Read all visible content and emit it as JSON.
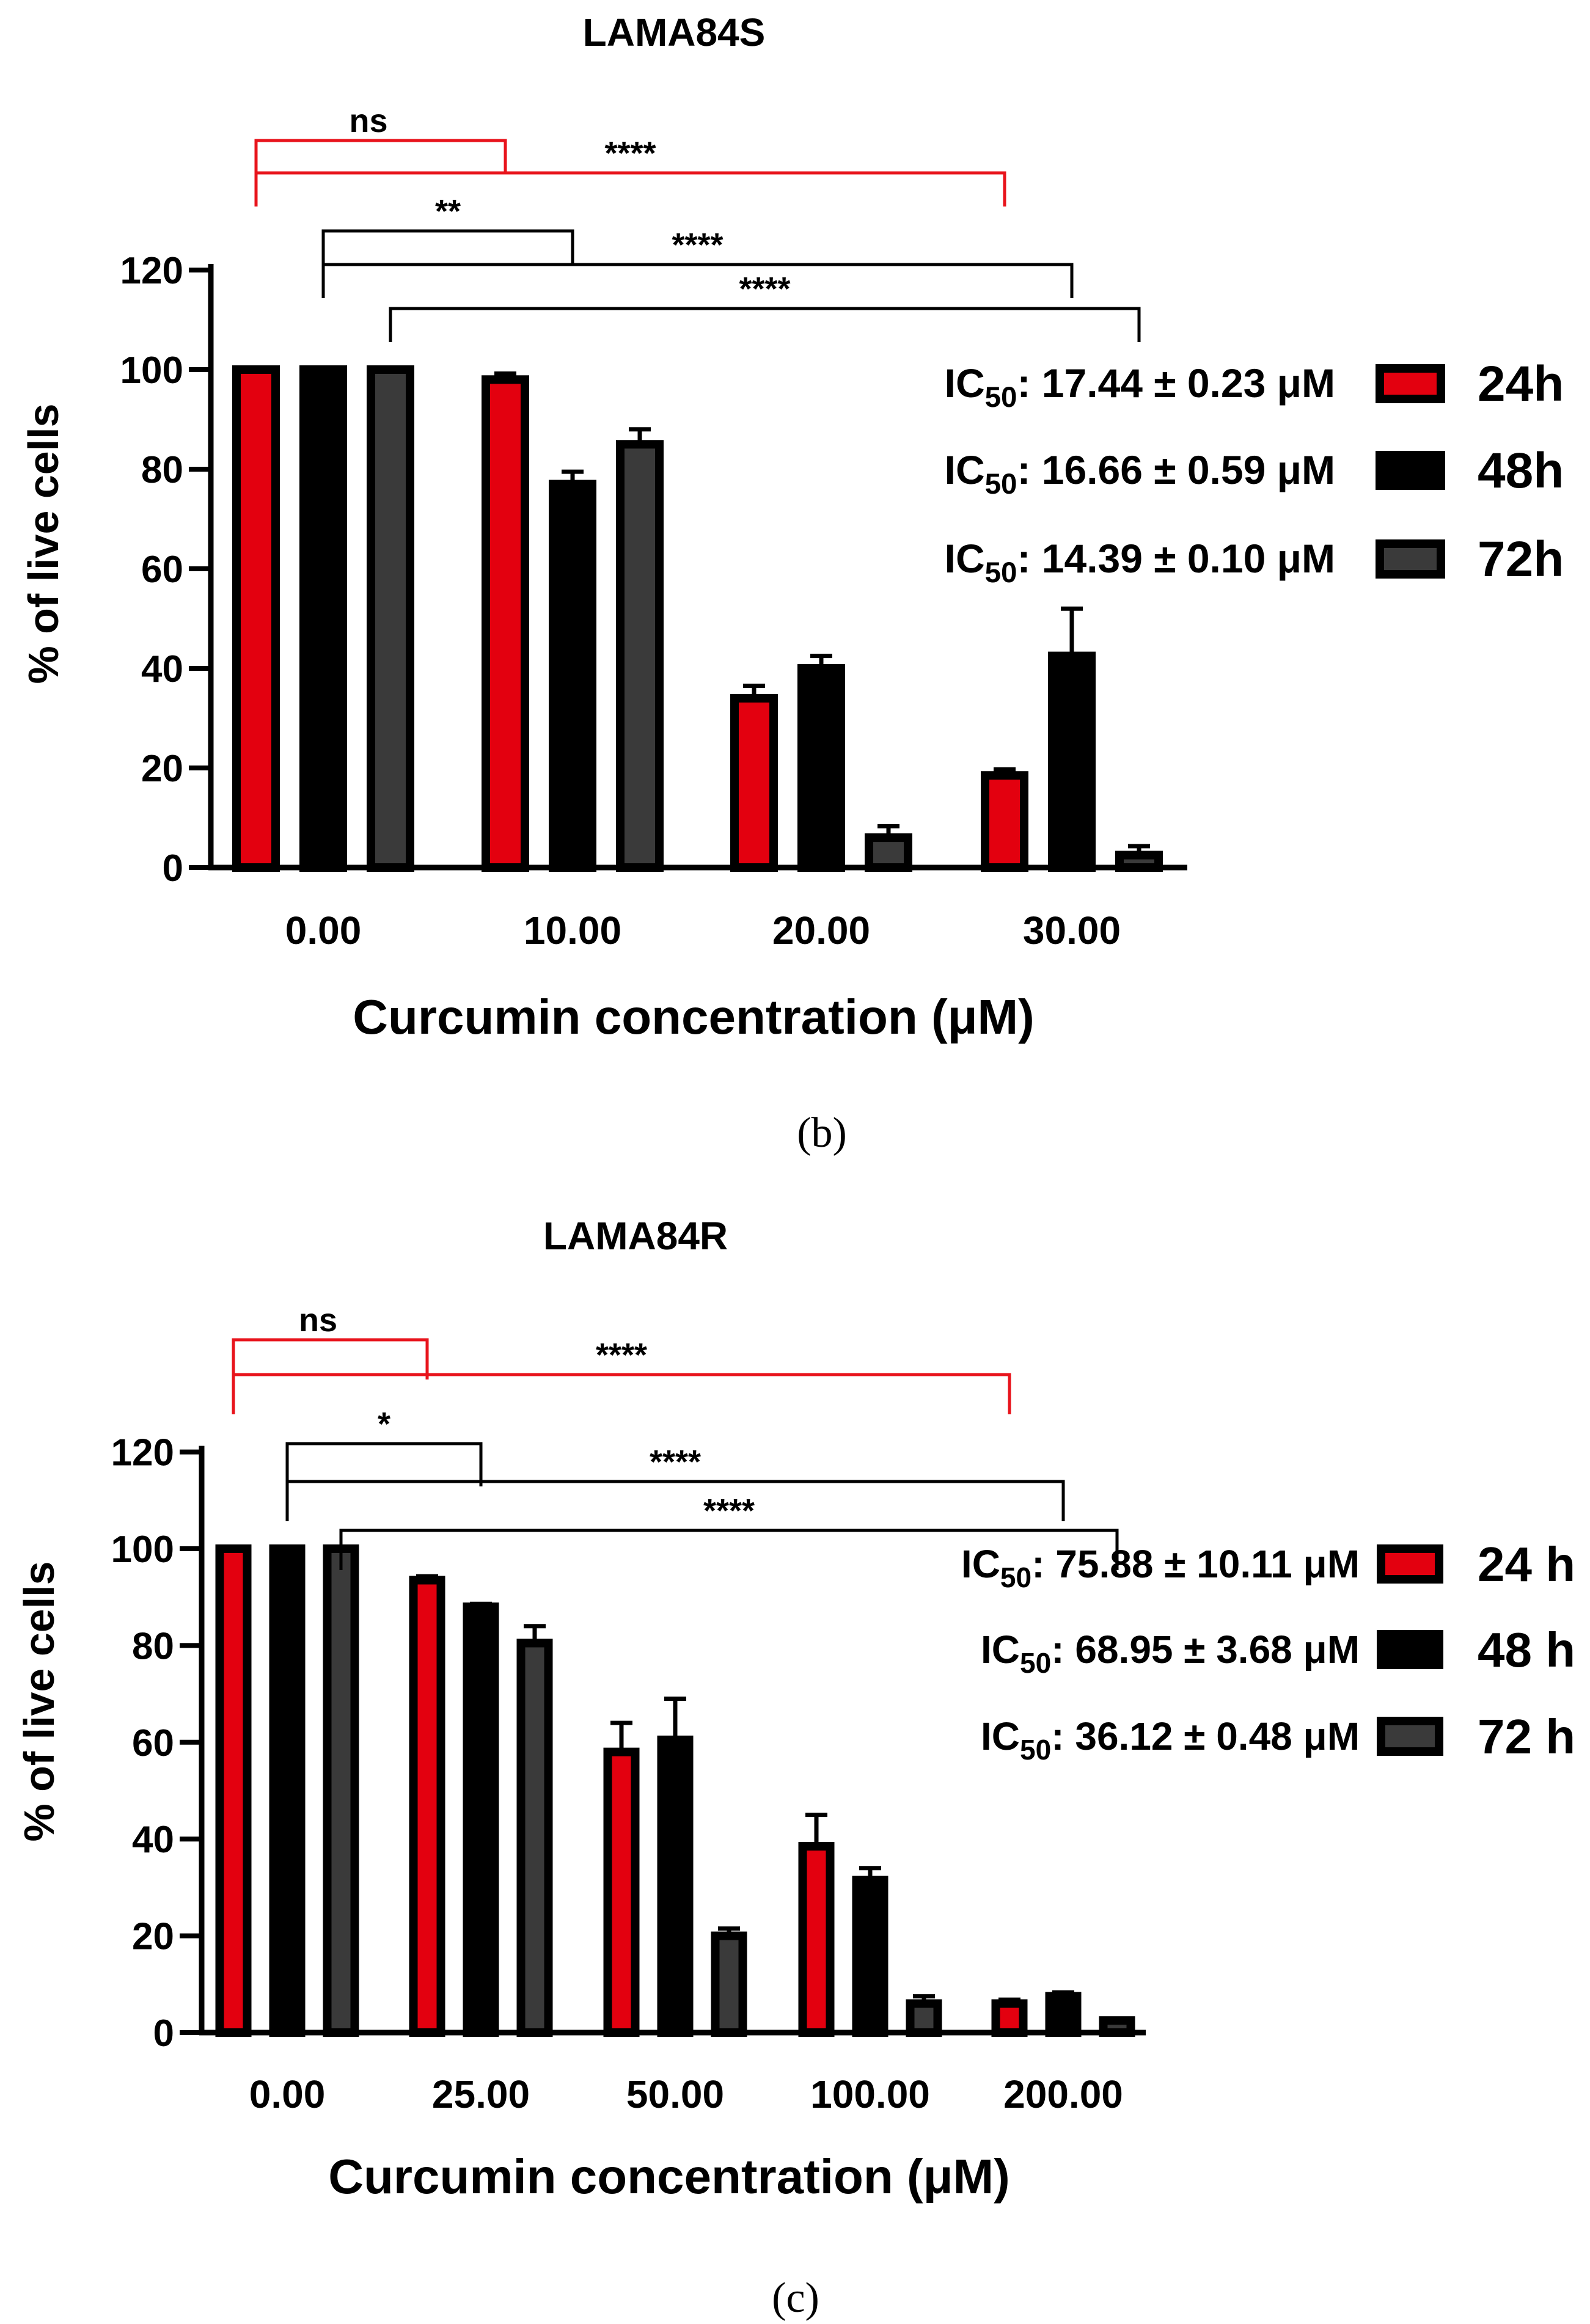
{
  "colors": {
    "h24": "#e3000f",
    "h48": "#000000",
    "h72": "#3a3a3a",
    "axis": "#000000",
    "sig_red": "#e8141c",
    "sig_black": "#000000"
  },
  "chart_data": [
    {
      "type": "bar",
      "title": "LAMA84S",
      "caption": "(b)",
      "xlabel": "Curcumin concentration (μM)",
      "ylabel": "% of live cells",
      "ylim": [
        0,
        120
      ],
      "yticks": [
        0,
        20,
        40,
        60,
        80,
        100,
        120
      ],
      "categories": [
        "0.00",
        "10.00",
        "20.00",
        "30.00"
      ],
      "series": [
        {
          "name": "24h",
          "color_key": "h24",
          "values": [
            100,
            98,
            34,
            18.5
          ],
          "errors": [
            0,
            1.2,
            2.5,
            1.2
          ]
        },
        {
          "name": "48h",
          "color_key": "h48",
          "values": [
            100,
            77,
            40,
            42.5
          ],
          "errors": [
            0,
            2.5,
            2.5,
            9.5
          ]
        },
        {
          "name": "72h",
          "color_key": "h72",
          "values": [
            100,
            85,
            6,
            2.5
          ],
          "errors": [
            0,
            3,
            2.3,
            1.8
          ]
        }
      ],
      "ic50": [
        {
          "prefix": "IC",
          "sub": "50",
          "rest": ": 17.44 ± 0.23 μM"
        },
        {
          "prefix": "IC",
          "sub": "50",
          "rest": ": 16.66 ± 0.59 μM"
        },
        {
          "prefix": "IC",
          "sub": "50",
          "rest": ": 14.39 ± 0.10 μM"
        }
      ],
      "significance": [
        {
          "label": "ns",
          "from_cat": 0,
          "from_series": 0,
          "to_cat": 1,
          "to_series": 0,
          "color_key": "sig_red"
        },
        {
          "label": "****",
          "from_cat": 0,
          "from_series": 0,
          "to_cat": 3,
          "to_series": 0,
          "color_key": "sig_red"
        },
        {
          "label": "**",
          "from_cat": 0,
          "from_series": 1,
          "to_cat": 1,
          "to_series": 1,
          "color_key": "sig_black"
        },
        {
          "label": "****",
          "from_cat": 0,
          "from_series": 1,
          "to_cat": 3,
          "to_series": 1,
          "color_key": "sig_black"
        },
        {
          "label": "****",
          "from_cat": 0,
          "from_series": 2,
          "to_cat": 3,
          "to_series": 2,
          "color_key": "sig_black"
        }
      ]
    },
    {
      "type": "bar",
      "title": "LAMA84R",
      "caption": "(c)",
      "xlabel": "Curcumin concentration (μM)",
      "ylabel": "% of live cells",
      "ylim": [
        0,
        120
      ],
      "yticks": [
        0,
        20,
        40,
        60,
        80,
        100,
        120
      ],
      "categories": [
        "0.00",
        "25.00",
        "50.00",
        "100.00",
        "200.00"
      ],
      "series": [
        {
          "name": "24 h",
          "color_key": "h24",
          "values": [
            100,
            93.5,
            58,
            38.5,
            6
          ],
          "errors": [
            0,
            0.8,
            6,
            6.5,
            0.8
          ]
        },
        {
          "name": "48 h",
          "color_key": "h48",
          "values": [
            100,
            88,
            60.5,
            31.5,
            7.5
          ],
          "errors": [
            0,
            0.6,
            8.5,
            2.5,
            0.8
          ]
        },
        {
          "name": "72 h",
          "color_key": "h72",
          "values": [
            100,
            80.5,
            20,
            6,
            2.5
          ],
          "errors": [
            0,
            3.5,
            1.5,
            1.5,
            0
          ]
        }
      ],
      "ic50": [
        {
          "prefix": "IC",
          "sub": "50",
          "rest": ": 75.88 ± 10.11 μM"
        },
        {
          "prefix": "IC",
          "sub": "50",
          "rest": ": 68.95 ± 3.68 μM"
        },
        {
          "prefix": "IC",
          "sub": "50",
          "rest": ": 36.12 ± 0.48 μM"
        }
      ],
      "significance": [
        {
          "label": "ns",
          "from_cat": 0,
          "from_series": 0,
          "to_cat": 1,
          "to_series": 0,
          "color_key": "sig_red"
        },
        {
          "label": "****",
          "from_cat": 0,
          "from_series": 0,
          "to_cat": 4,
          "to_series": 0,
          "color_key": "sig_red"
        },
        {
          "label": "*",
          "from_cat": 0,
          "from_series": 1,
          "to_cat": 1,
          "to_series": 1,
          "color_key": "sig_black"
        },
        {
          "label": "****",
          "from_cat": 0,
          "from_series": 1,
          "to_cat": 4,
          "to_series": 1,
          "color_key": "sig_black"
        },
        {
          "label": "****",
          "from_cat": 0,
          "from_series": 2,
          "to_cat": 4,
          "to_series": 2,
          "color_key": "sig_black"
        }
      ]
    }
  ]
}
